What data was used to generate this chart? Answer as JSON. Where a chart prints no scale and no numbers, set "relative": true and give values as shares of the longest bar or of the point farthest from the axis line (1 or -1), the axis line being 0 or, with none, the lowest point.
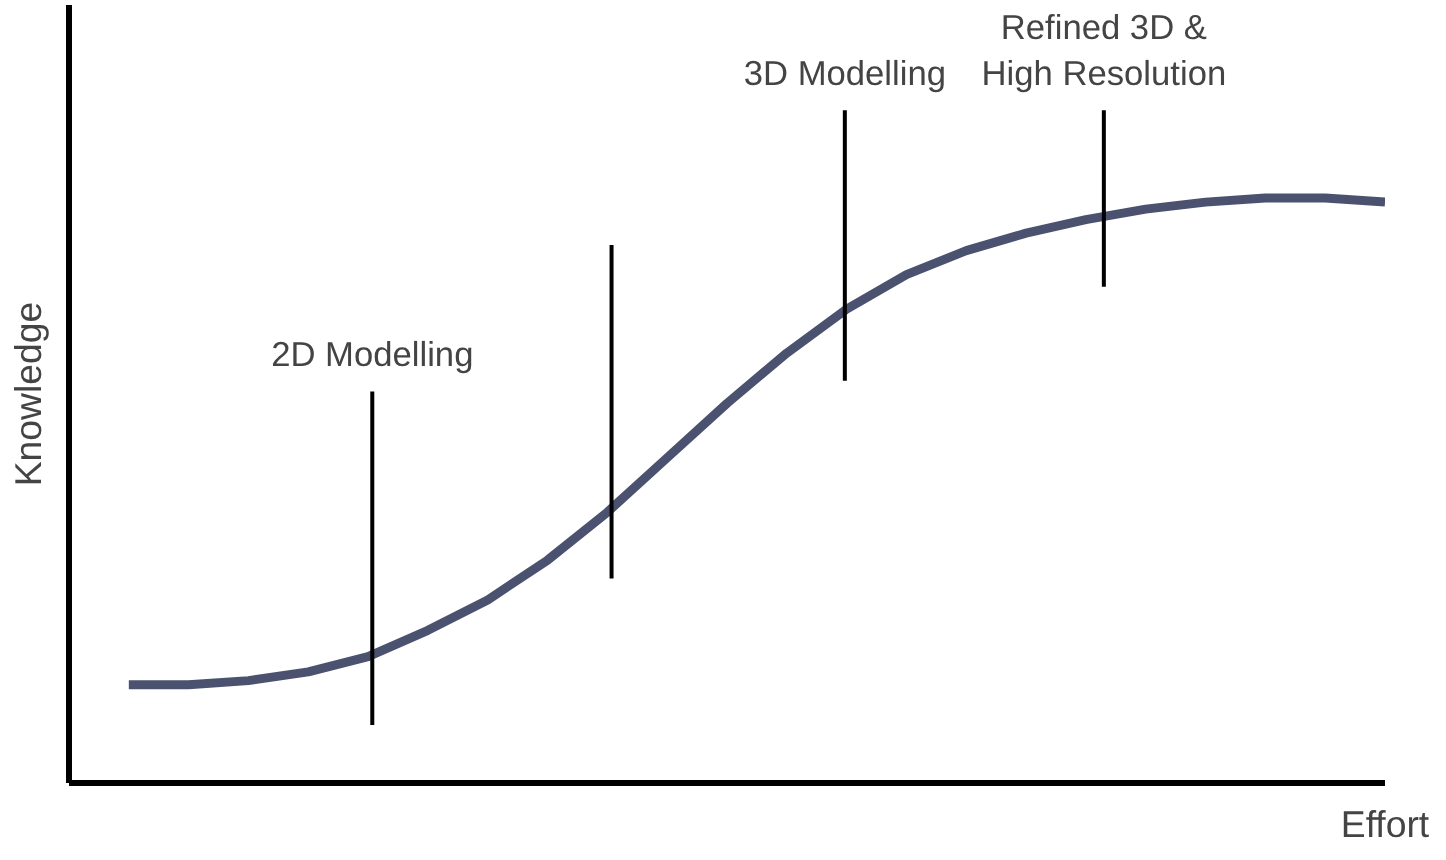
{
  "chart_data": {
    "type": "line",
    "relative": true,
    "xlabel": "Effort",
    "ylabel": "Knowledge",
    "categories": [
      null,
      null,
      null,
      null,
      null,
      null,
      null,
      null,
      null,
      null,
      null,
      null,
      null,
      null,
      null,
      null,
      null,
      null,
      null,
      null,
      null,
      null
    ],
    "series": [
      {
        "color": "#4b5270",
        "values": [
          0.168,
          0.168,
          0.175,
          0.19,
          0.216,
          0.261,
          0.313,
          0.381,
          0.463,
          0.556,
          0.649,
          0.735,
          0.81,
          0.869,
          0.91,
          0.94,
          0.963,
          0.981,
          0.993,
          1.0,
          1.0,
          0.993
        ]
      }
    ],
    "annotations": [
      "2D Modelling",
      "3D Modelling",
      "Refined 3D &\nHigh Resolution"
    ],
    "grid": false,
    "marker": "none",
    "line_style": "solid"
  }
}
